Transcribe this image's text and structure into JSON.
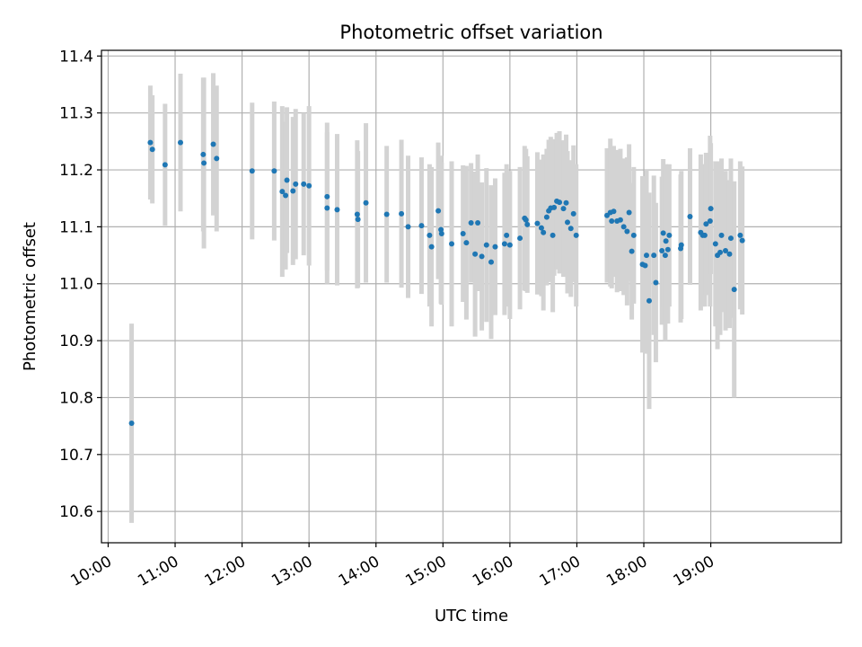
{
  "colors": {
    "marker": "#1f77b4",
    "errorbar": "#d3d3d3",
    "grid": "#b0b0b0",
    "axis": "#000000"
  },
  "chart_data": {
    "type": "scatter",
    "title": "Photometric offset variation",
    "xlabel": "UTC time",
    "ylabel": "Photometric offset",
    "x_unit": "UTC hour (decimal)",
    "xlim": [
      9.9,
      20.95
    ],
    "ylim": [
      10.545,
      11.41
    ],
    "grid": true,
    "xticks": [
      10,
      11,
      12,
      13,
      14,
      15,
      16,
      17,
      18,
      19
    ],
    "xtick_labels": [
      "10:00",
      "11:00",
      "12:00",
      "13:00",
      "14:00",
      "15:00",
      "16:00",
      "17:00",
      "18:00",
      "19:00"
    ],
    "yticks": [
      10.6,
      10.7,
      10.8,
      10.9,
      11.0,
      11.1,
      11.2,
      11.3,
      11.4
    ],
    "ytick_labels": [
      "10.6",
      "10.7",
      "10.8",
      "10.9",
      "11.0",
      "11.1",
      "11.2",
      "11.3",
      "11.4"
    ],
    "series": [
      {
        "marker": "point",
        "error_bars": "y",
        "points": [
          [
            10.35,
            10.755,
            0.175
          ],
          [
            10.63,
            11.248,
            0.1
          ],
          [
            10.66,
            11.236,
            0.095
          ],
          [
            10.85,
            11.209,
            0.107
          ],
          [
            11.08,
            11.248,
            0.121
          ],
          [
            11.42,
            11.227,
            0.135
          ],
          [
            11.43,
            11.212,
            0.15
          ],
          [
            11.57,
            11.245,
            0.125
          ],
          [
            11.62,
            11.22,
            0.128
          ],
          [
            12.15,
            11.198,
            0.12
          ],
          [
            12.48,
            11.198,
            0.122
          ],
          [
            12.6,
            11.162,
            0.15
          ],
          [
            12.65,
            11.155,
            0.13
          ],
          [
            12.67,
            11.182,
            0.128
          ],
          [
            12.76,
            11.163,
            0.13
          ],
          [
            12.8,
            11.175,
            0.132
          ],
          [
            12.92,
            11.175,
            0.125
          ],
          [
            13.0,
            11.172,
            0.14
          ],
          [
            13.27,
            11.153,
            0.13
          ],
          [
            13.27,
            11.133,
            0.133
          ],
          [
            13.42,
            11.13,
            0.133
          ],
          [
            13.72,
            11.122,
            0.13
          ],
          [
            13.73,
            11.113,
            0.12
          ],
          [
            13.85,
            11.142,
            0.14
          ],
          [
            14.16,
            11.122,
            0.12
          ],
          [
            14.38,
            11.123,
            0.13
          ],
          [
            14.48,
            11.1,
            0.125
          ],
          [
            14.68,
            11.102,
            0.12
          ],
          [
            14.8,
            11.085,
            0.125
          ],
          [
            14.83,
            11.065,
            0.14
          ],
          [
            14.93,
            11.128,
            0.12
          ],
          [
            14.97,
            11.095,
            0.13
          ],
          [
            14.98,
            11.088,
            0.125
          ],
          [
            15.13,
            11.07,
            0.145
          ],
          [
            15.3,
            11.088,
            0.12
          ],
          [
            15.35,
            11.072,
            0.135
          ],
          [
            15.42,
            11.107,
            0.105
          ],
          [
            15.48,
            11.052,
            0.145
          ],
          [
            15.52,
            11.107,
            0.12
          ],
          [
            15.58,
            11.048,
            0.13
          ],
          [
            15.65,
            11.068,
            0.135
          ],
          [
            15.72,
            11.038,
            0.135
          ],
          [
            15.78,
            11.065,
            0.12
          ],
          [
            15.92,
            11.07,
            0.125
          ],
          [
            15.95,
            11.085,
            0.125
          ],
          [
            16.0,
            11.068,
            0.13
          ],
          [
            16.15,
            11.08,
            0.125
          ],
          [
            16.22,
            11.115,
            0.127
          ],
          [
            16.24,
            11.112,
            0.125
          ],
          [
            16.26,
            11.104,
            0.12
          ],
          [
            16.41,
            11.106,
            0.125
          ],
          [
            16.47,
            11.098,
            0.12
          ],
          [
            16.5,
            11.09,
            0.137
          ],
          [
            16.55,
            11.117,
            0.12
          ],
          [
            16.58,
            11.128,
            0.125
          ],
          [
            16.61,
            11.133,
            0.125
          ],
          [
            16.64,
            11.085,
            0.135
          ],
          [
            16.66,
            11.134,
            0.12
          ],
          [
            16.7,
            11.145,
            0.12
          ],
          [
            16.74,
            11.143,
            0.125
          ],
          [
            16.8,
            11.132,
            0.12
          ],
          [
            16.84,
            11.142,
            0.12
          ],
          [
            16.86,
            11.108,
            0.125
          ],
          [
            16.91,
            11.097,
            0.12
          ],
          [
            16.95,
            11.123,
            0.12
          ],
          [
            16.99,
            11.085,
            0.125
          ],
          [
            17.45,
            11.12,
            0.118
          ],
          [
            17.5,
            11.125,
            0.13
          ],
          [
            17.52,
            11.11,
            0.118
          ],
          [
            17.55,
            11.127,
            0.115
          ],
          [
            17.6,
            11.11,
            0.125
          ],
          [
            17.65,
            11.112,
            0.125
          ],
          [
            17.7,
            11.1,
            0.12
          ],
          [
            17.75,
            11.092,
            0.13
          ],
          [
            17.78,
            11.125,
            0.12
          ],
          [
            17.82,
            11.057,
            0.12
          ],
          [
            17.85,
            11.085,
            0.12
          ],
          [
            17.98,
            11.034,
            0.155
          ],
          [
            18.02,
            11.032,
            0.155
          ],
          [
            18.04,
            11.05,
            0.15
          ],
          [
            18.08,
            10.97,
            0.19
          ],
          [
            18.15,
            11.05,
            0.14
          ],
          [
            18.18,
            11.002,
            0.14
          ],
          [
            18.27,
            11.058,
            0.13
          ],
          [
            18.29,
            11.089,
            0.13
          ],
          [
            18.32,
            11.05,
            0.15
          ],
          [
            18.33,
            11.075,
            0.135
          ],
          [
            18.36,
            11.06,
            0.13
          ],
          [
            18.38,
            11.085,
            0.125
          ],
          [
            18.55,
            11.062,
            0.13
          ],
          [
            18.56,
            11.068,
            0.13
          ],
          [
            18.69,
            11.118,
            0.12
          ],
          [
            18.85,
            11.09,
            0.137
          ],
          [
            18.88,
            11.085,
            0.125
          ],
          [
            18.91,
            11.085,
            0.125
          ],
          [
            18.93,
            11.105,
            0.125
          ],
          [
            18.99,
            11.11,
            0.15
          ],
          [
            19.0,
            11.132,
            0.115
          ],
          [
            19.07,
            11.07,
            0.145
          ],
          [
            19.1,
            11.05,
            0.165
          ],
          [
            19.14,
            11.055,
            0.145
          ],
          [
            19.16,
            11.085,
            0.135
          ],
          [
            19.22,
            11.058,
            0.14
          ],
          [
            19.28,
            11.052,
            0.13
          ],
          [
            19.3,
            11.08,
            0.14
          ],
          [
            19.35,
            10.99,
            0.19
          ],
          [
            19.44,
            11.085,
            0.13
          ],
          [
            19.47,
            11.076,
            0.13
          ]
        ]
      }
    ]
  }
}
